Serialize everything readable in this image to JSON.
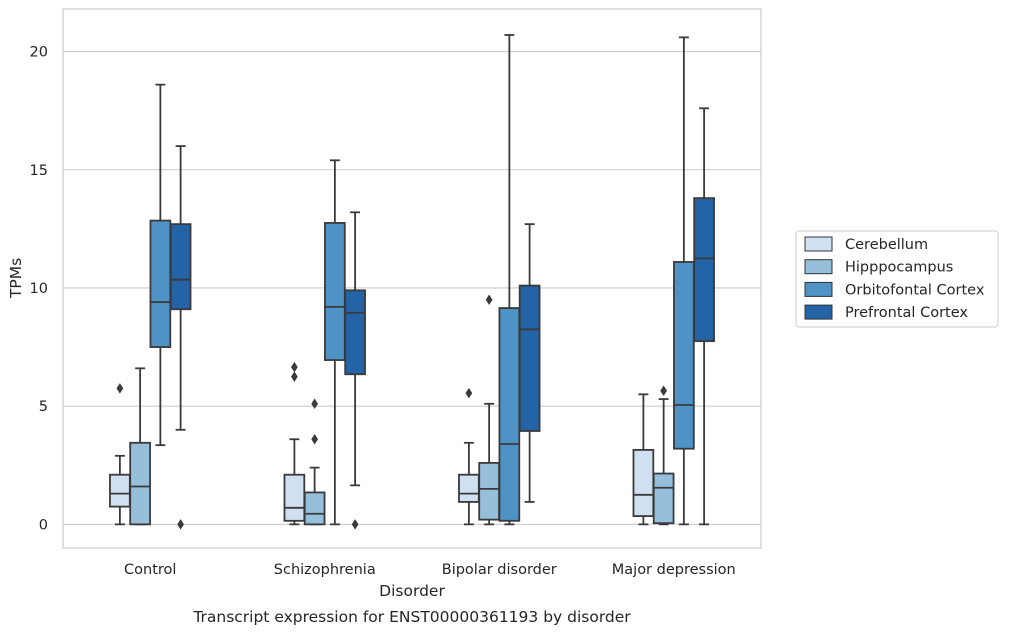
{
  "chart_data": {
    "type": "box",
    "xlabel": "Disorder",
    "ylabel": "TPMs",
    "caption": "Transcript expression for ENST00000361193 by disorder",
    "categories": [
      "Control",
      "Schizophrenia",
      "Bipolar disorder",
      "Major depression"
    ],
    "ylim": [
      -1,
      21.8
    ],
    "yticks": [
      0,
      5,
      10,
      15,
      20
    ],
    "grid": "horizontal",
    "legend_position": "right",
    "series": [
      {
        "name": "Cerebellum",
        "color": "#d0e0f1",
        "boxes": [
          {
            "min": 0,
            "q1": 0.75,
            "median": 1.3,
            "q3": 2.1,
            "max": 2.9,
            "outliers": [
              5.75
            ]
          },
          {
            "min": 0,
            "q1": 0.15,
            "median": 0.7,
            "q3": 2.1,
            "max": 3.6,
            "outliers": [
              6.25,
              6.65
            ]
          },
          {
            "min": 0,
            "q1": 0.95,
            "median": 1.3,
            "q3": 2.1,
            "max": 3.45,
            "outliers": [
              5.55
            ]
          },
          {
            "min": 0,
            "q1": 0.35,
            "median": 1.25,
            "q3": 3.15,
            "max": 5.5,
            "outliers": []
          }
        ]
      },
      {
        "name": "Hipppocampus",
        "color": "#96bfdc",
        "boxes": [
          {
            "min": 0,
            "q1": 0,
            "median": 1.6,
            "q3": 3.45,
            "max": 6.6,
            "outliers": []
          },
          {
            "min": 0,
            "q1": 0,
            "median": 0.45,
            "q3": 1.35,
            "max": 2.4,
            "outliers": [
              3.6,
              5.1
            ]
          },
          {
            "min": 0,
            "q1": 0.2,
            "median": 1.5,
            "q3": 2.6,
            "max": 5.1,
            "outliers": [
              9.5
            ]
          },
          {
            "min": 0,
            "q1": 0.05,
            "median": 1.55,
            "q3": 2.15,
            "max": 5.3,
            "outliers": [
              5.65
            ]
          }
        ]
      },
      {
        "name": "Orbitofontal Cortex",
        "color": "#4f92c5",
        "boxes": [
          {
            "min": 3.35,
            "q1": 7.5,
            "median": 9.4,
            "q3": 12.85,
            "max": 18.6,
            "outliers": []
          },
          {
            "min": 0,
            "q1": 6.95,
            "median": 9.2,
            "q3": 12.75,
            "max": 15.4,
            "outliers": []
          },
          {
            "min": 0,
            "q1": 0.15,
            "median": 3.4,
            "q3": 9.15,
            "max": 20.7,
            "outliers": []
          },
          {
            "min": 0,
            "q1": 3.2,
            "median": 5.05,
            "q3": 11.1,
            "max": 20.6,
            "outliers": []
          }
        ]
      },
      {
        "name": "Prefrontal Cortex",
        "color": "#2363a6",
        "boxes": [
          {
            "min": 4.0,
            "q1": 9.1,
            "median": 10.35,
            "q3": 12.7,
            "max": 16.0,
            "outliers": [
              0
            ]
          },
          {
            "min": 1.65,
            "q1": 6.35,
            "median": 8.95,
            "q3": 9.9,
            "max": 13.2,
            "outliers": [
              0
            ]
          },
          {
            "min": 0.95,
            "q1": 3.95,
            "median": 8.25,
            "q3": 10.1,
            "max": 12.7,
            "outliers": []
          },
          {
            "min": 0,
            "q1": 7.75,
            "median": 11.25,
            "q3": 13.8,
            "max": 17.6,
            "outliers": []
          }
        ]
      }
    ]
  }
}
